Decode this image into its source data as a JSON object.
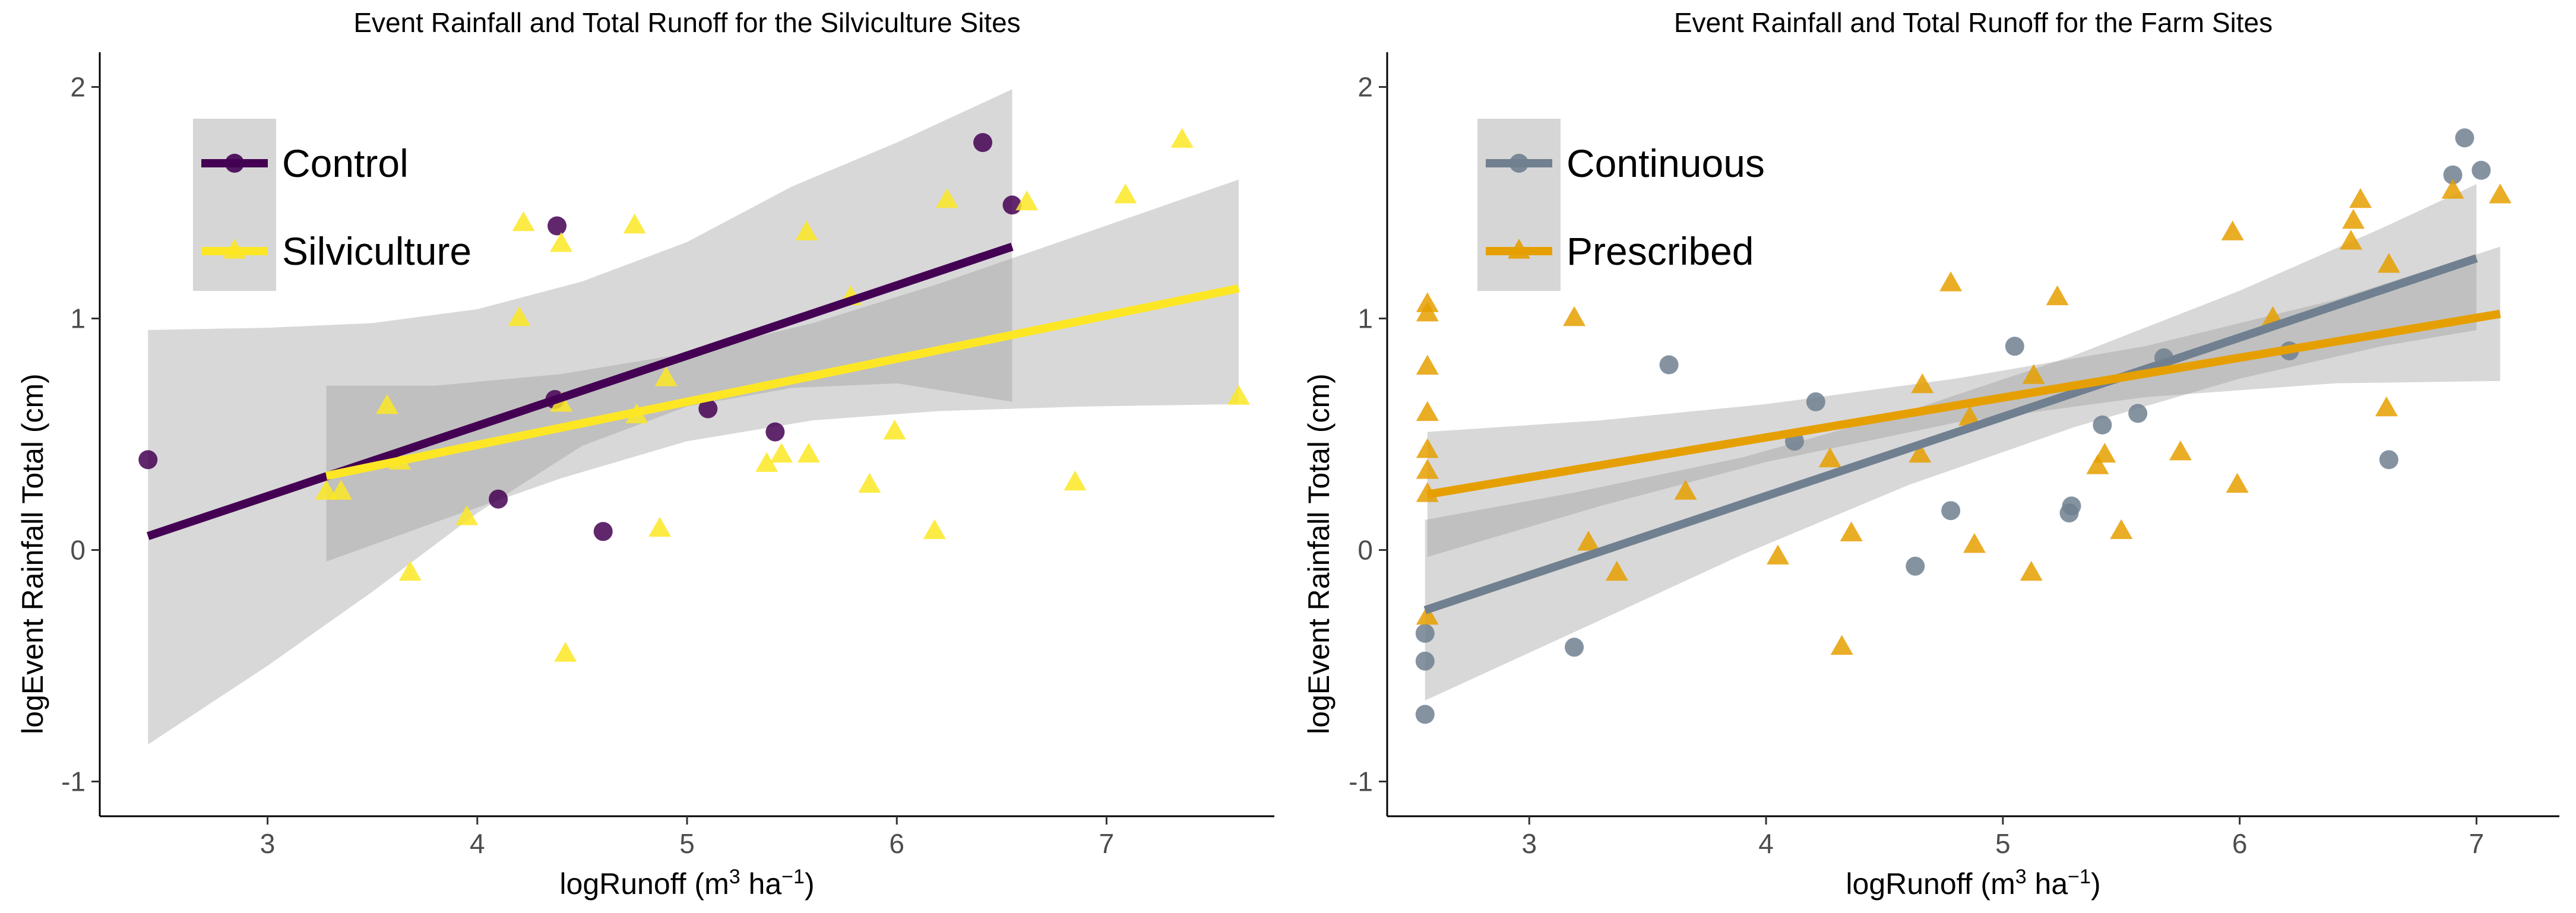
{
  "chart_data": [
    {
      "type": "scatter",
      "title": "Event Rainfall and Total Runoff for the Silviculture Sites",
      "xlabel": "logRunoff (m³ ha⁻¹)",
      "ylabel": "logEvent Rainfall Total (cm)",
      "xlim": [
        2.2,
        7.8
      ],
      "ylim": [
        -1.15,
        2.15
      ],
      "xticks": [
        3,
        4,
        5,
        6,
        7
      ],
      "yticks": [
        -1,
        0,
        1,
        2
      ],
      "legend_position": "top-left",
      "grid": false,
      "series": [
        {
          "name": "Control",
          "color": "#440154",
          "marker": "circle",
          "points": [
            [
              2.43,
              0.39
            ],
            [
              4.1,
              0.22
            ],
            [
              4.37,
              0.65
            ],
            [
              4.38,
              1.4
            ],
            [
              4.6,
              0.08
            ],
            [
              5.1,
              0.61
            ],
            [
              5.42,
              0.51
            ],
            [
              6.41,
              1.76
            ],
            [
              6.55,
              1.49
            ]
          ],
          "fit": {
            "x": [
              2.43,
              6.55
            ],
            "y": [
              0.06,
              1.31
            ]
          },
          "band": {
            "x": [
              2.43,
              3.0,
              3.5,
              4.0,
              4.5,
              5.0,
              5.5,
              6.0,
              6.55
            ],
            "lower": [
              -0.84,
              -0.5,
              -0.18,
              0.16,
              0.45,
              0.62,
              0.7,
              0.72,
              0.64
            ],
            "upper": [
              0.95,
              0.96,
              0.98,
              1.04,
              1.16,
              1.33,
              1.57,
              1.76,
              1.99
            ]
          }
        },
        {
          "name": "Silviculture",
          "color": "#fde725",
          "marker": "triangle",
          "points": [
            [
              3.28,
              0.25
            ],
            [
              3.35,
              0.25
            ],
            [
              3.57,
              0.62
            ],
            [
              3.63,
              0.38
            ],
            [
              3.68,
              -0.1
            ],
            [
              3.95,
              0.14
            ],
            [
              4.2,
              1.0
            ],
            [
              4.22,
              1.41
            ],
            [
              4.4,
              1.32
            ],
            [
              4.4,
              0.63
            ],
            [
              4.42,
              -0.45
            ],
            [
              4.75,
              1.4
            ],
            [
              4.76,
              0.58
            ],
            [
              4.87,
              0.09
            ],
            [
              4.9,
              0.74
            ],
            [
              5.38,
              0.37
            ],
            [
              5.45,
              0.41
            ],
            [
              5.57,
              1.37
            ],
            [
              5.58,
              0.41
            ],
            [
              5.78,
              1.09
            ],
            [
              5.87,
              0.28
            ],
            [
              5.99,
              0.51
            ],
            [
              6.18,
              0.08
            ],
            [
              6.24,
              1.51
            ],
            [
              6.62,
              1.5
            ],
            [
              6.85,
              0.29
            ],
            [
              7.09,
              1.53
            ],
            [
              7.36,
              1.77
            ],
            [
              7.63,
              0.66
            ]
          ],
          "fit": {
            "x": [
              3.28,
              7.63
            ],
            "y": [
              0.32,
              1.13
            ]
          },
          "band": {
            "x": [
              3.28,
              3.8,
              4.4,
              5.0,
              5.6,
              6.2,
              6.9,
              7.63
            ],
            "lower": [
              -0.05,
              0.12,
              0.31,
              0.47,
              0.56,
              0.6,
              0.62,
              0.63
            ],
            "upper": [
              0.71,
              0.71,
              0.76,
              0.85,
              0.98,
              1.15,
              1.37,
              1.6
            ]
          }
        }
      ]
    },
    {
      "type": "scatter",
      "title": "Event Rainfall and Total Runoff for the Farm Sites",
      "xlabel": "logRunoff (m³ ha⁻¹)",
      "ylabel": "logEvent Rainfall Total (cm)",
      "xlim": [
        2.4,
        7.35
      ],
      "ylim": [
        -1.15,
        2.15
      ],
      "xticks": [
        3,
        4,
        5,
        6,
        7
      ],
      "yticks": [
        -1,
        0,
        1,
        2
      ],
      "legend_position": "top-left",
      "grid": false,
      "series": [
        {
          "name": "Continuous",
          "color": "#708090",
          "marker": "circle",
          "points": [
            [
              2.56,
              -0.36
            ],
            [
              2.56,
              -0.48
            ],
            [
              2.56,
              -0.71
            ],
            [
              3.19,
              -0.42
            ],
            [
              3.59,
              0.8
            ],
            [
              4.21,
              0.64
            ],
            [
              4.78,
              0.17
            ],
            [
              4.63,
              -0.07
            ],
            [
              5.05,
              0.88
            ],
            [
              5.28,
              0.16
            ],
            [
              5.29,
              0.19
            ],
            [
              5.42,
              0.54
            ],
            [
              5.57,
              0.59
            ],
            [
              5.68,
              0.83
            ],
            [
              6.21,
              0.86
            ],
            [
              6.63,
              0.39
            ],
            [
              6.9,
              1.62
            ],
            [
              6.95,
              1.78
            ],
            [
              7.02,
              1.64
            ],
            [
              4.12,
              0.47
            ]
          ],
          "fit": {
            "x": [
              2.56,
              7.0
            ],
            "y": [
              -0.26,
              1.26
            ]
          },
          "band": {
            "x": [
              2.56,
              3.2,
              3.9,
              4.6,
              5.3,
              6.0,
              6.6,
              7.0
            ],
            "lower": [
              -0.65,
              -0.35,
              -0.02,
              0.28,
              0.53,
              0.74,
              0.88,
              0.95
            ],
            "upper": [
              0.13,
              0.25,
              0.4,
              0.6,
              0.84,
              1.12,
              1.39,
              1.58
            ]
          }
        },
        {
          "name": "Prescribed",
          "color": "#e69f00",
          "marker": "triangle",
          "points": [
            [
              2.57,
              1.06
            ],
            [
              2.57,
              1.02
            ],
            [
              2.57,
              0.79
            ],
            [
              2.57,
              0.59
            ],
            [
              2.57,
              0.43
            ],
            [
              2.57,
              0.34
            ],
            [
              2.57,
              0.24
            ],
            [
              2.57,
              -0.29
            ],
            [
              3.19,
              1.0
            ],
            [
              3.25,
              0.03
            ],
            [
              3.37,
              -0.1
            ],
            [
              3.66,
              0.25
            ],
            [
              4.05,
              -0.03
            ],
            [
              4.27,
              0.39
            ],
            [
              4.32,
              -0.42
            ],
            [
              4.36,
              0.07
            ],
            [
              4.65,
              0.41
            ],
            [
              4.66,
              0.71
            ],
            [
              4.78,
              1.15
            ],
            [
              4.86,
              0.57
            ],
            [
              4.88,
              0.02
            ],
            [
              5.12,
              -0.1
            ],
            [
              5.13,
              0.75
            ],
            [
              5.23,
              1.09
            ],
            [
              5.4,
              0.36
            ],
            [
              5.43,
              0.41
            ],
            [
              5.5,
              0.08
            ],
            [
              5.75,
              0.42
            ],
            [
              5.97,
              1.37
            ],
            [
              5.99,
              0.28
            ],
            [
              6.14,
              1.0
            ],
            [
              6.47,
              1.33
            ],
            [
              6.48,
              1.42
            ],
            [
              6.51,
              1.51
            ],
            [
              6.62,
              0.61
            ],
            [
              6.63,
              1.23
            ],
            [
              6.9,
              1.55
            ],
            [
              7.1,
              1.53
            ]
          ],
          "fit": {
            "x": [
              2.57,
              7.1
            ],
            "y": [
              0.24,
              1.02
            ]
          },
          "band": {
            "x": [
              2.57,
              3.3,
              4.0,
              4.8,
              5.6,
              6.4,
              7.1
            ],
            "lower": [
              -0.03,
              0.19,
              0.38,
              0.55,
              0.66,
              0.72,
              0.73
            ],
            "upper": [
              0.51,
              0.56,
              0.63,
              0.74,
              0.88,
              1.08,
              1.31
            ]
          }
        }
      ]
    }
  ]
}
